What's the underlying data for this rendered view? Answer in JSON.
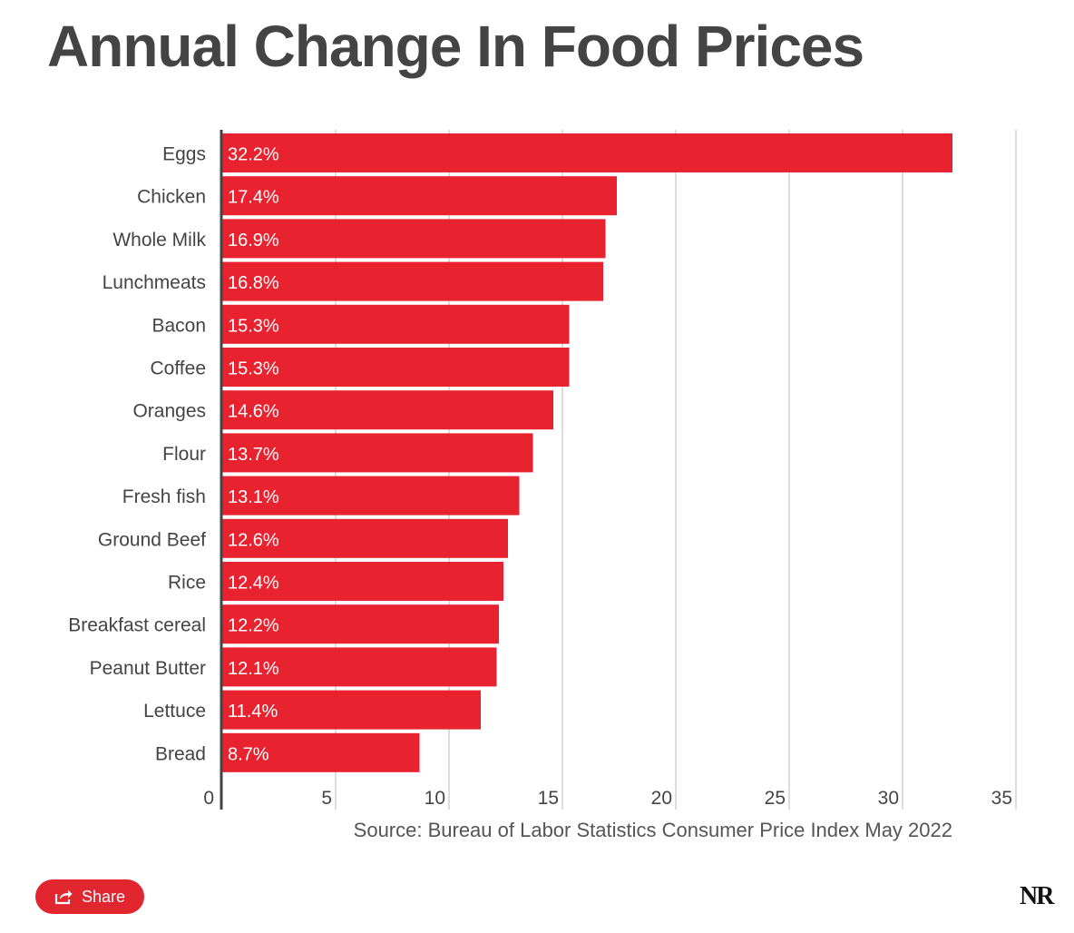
{
  "chart_data": {
    "type": "bar",
    "orientation": "horizontal",
    "title": "Annual Change In Food Prices",
    "source": "Source: Bureau of Labor Statistics Consumer Price Index May 2022",
    "categories": [
      "Eggs",
      "Chicken",
      "Whole Milk",
      "Lunchmeats",
      "Bacon",
      "Coffee",
      "Oranges",
      "Flour",
      "Fresh fish",
      "Ground Beef",
      "Rice",
      "Breakfast cereal",
      "Peanut Butter",
      "Lettuce",
      "Bread"
    ],
    "values": [
      32.2,
      17.4,
      16.9,
      16.8,
      15.3,
      15.3,
      14.6,
      13.7,
      13.1,
      12.6,
      12.4,
      12.2,
      12.1,
      11.4,
      8.7
    ],
    "value_labels": [
      "32.2%",
      "17.4%",
      "16.9%",
      "16.8%",
      "15.3%",
      "15.3%",
      "14.6%",
      "13.7%",
      "13.1%",
      "12.6%",
      "12.4%",
      "12.2%",
      "12.1%",
      "11.4%",
      "8.7%"
    ],
    "xticks": [
      0,
      5,
      10,
      15,
      20,
      25,
      30,
      35
    ],
    "xlim": [
      0,
      35
    ],
    "grid": true,
    "bar_color": "#e8232f"
  },
  "share": {
    "label": "Share"
  },
  "logo": {
    "text": "NR"
  }
}
